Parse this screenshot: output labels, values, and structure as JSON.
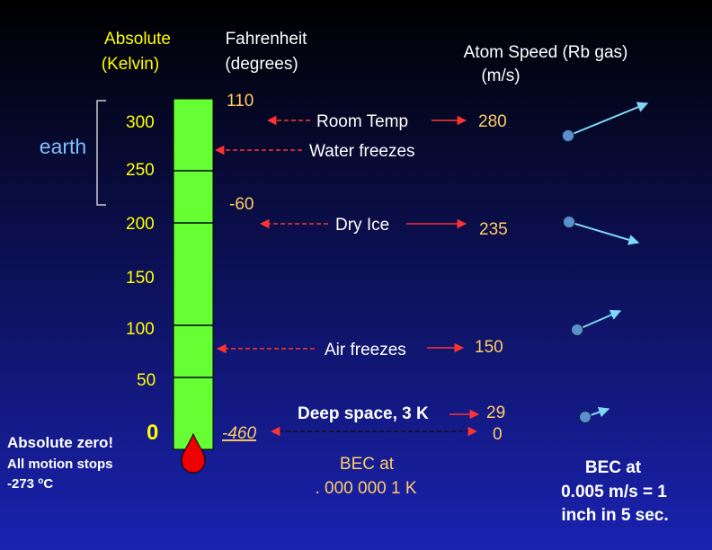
{
  "headers": {
    "kelvin": [
      "Absolute",
      "(Kelvin)"
    ],
    "fahrenheit": [
      "Fahrenheit",
      "(degrees)"
    ],
    "speed": [
      "Atom Speed (Rb gas)",
      "(m/s)"
    ]
  },
  "earth": "earth",
  "kelvin_ticks": [
    "300",
    "250",
    "200",
    "150",
    "100",
    "50",
    "0"
  ],
  "fahrenheit_marks": [
    "110",
    "-60",
    "-460"
  ],
  "events": [
    "Room Temp",
    "Water freezes",
    "Dry Ice",
    "Air freezes",
    "Deep space, 3 K"
  ],
  "speeds": [
    "280",
    "235",
    "150",
    "29",
    "0"
  ],
  "absolute_zero": {
    "title": "Absolute zero!",
    "line2": "All motion stops",
    "line3": {
      "prefix": "-273 ",
      "sup": "o",
      "suffix": "C"
    }
  },
  "bec_temperature": [
    "BEC at",
    ". 000 000 1 K"
  ],
  "bec_speed": [
    "BEC at",
    "0.005 m/s = 1",
    "inch in 5 sec."
  ]
}
